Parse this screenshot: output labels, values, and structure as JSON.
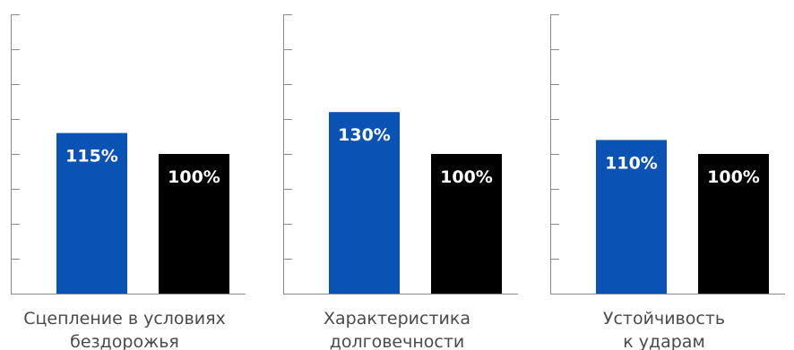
{
  "colors": {
    "primary_bar": "#0a52b4",
    "reference_bar": "#000000",
    "axis": "#8a8a8a",
    "category_text": "#4a4a4a",
    "value_text": "#ffffff"
  },
  "chart_data": [
    {
      "type": "bar",
      "categories": [
        "Сцепление в условиях бездорожья"
      ],
      "category_lines": [
        "Сцепление в условиях",
        "бездорожья"
      ],
      "series": [
        {
          "values": [
            115
          ],
          "labels": [
            "115%"
          ]
        },
        {
          "values": [
            100
          ],
          "labels": [
            "100%"
          ]
        }
      ],
      "ylim": [
        0,
        200
      ],
      "grid": false,
      "legend": "none"
    },
    {
      "type": "bar",
      "categories": [
        "Характеристика долговечности"
      ],
      "category_lines": [
        "Характеристика",
        "долговечности"
      ],
      "series": [
        {
          "values": [
            130
          ],
          "labels": [
            "130%"
          ]
        },
        {
          "values": [
            100
          ],
          "labels": [
            "100%"
          ]
        }
      ],
      "ylim": [
        0,
        200
      ],
      "grid": false,
      "legend": "none"
    },
    {
      "type": "bar",
      "categories": [
        "Устойчивость к ударам"
      ],
      "category_lines": [
        "Устойчивость",
        "к ударам"
      ],
      "series": [
        {
          "values": [
            110
          ],
          "labels": [
            "110%"
          ]
        },
        {
          "values": [
            100
          ],
          "labels": [
            "100%"
          ]
        }
      ],
      "ylim": [
        0,
        200
      ],
      "grid": false,
      "legend": "none"
    }
  ]
}
